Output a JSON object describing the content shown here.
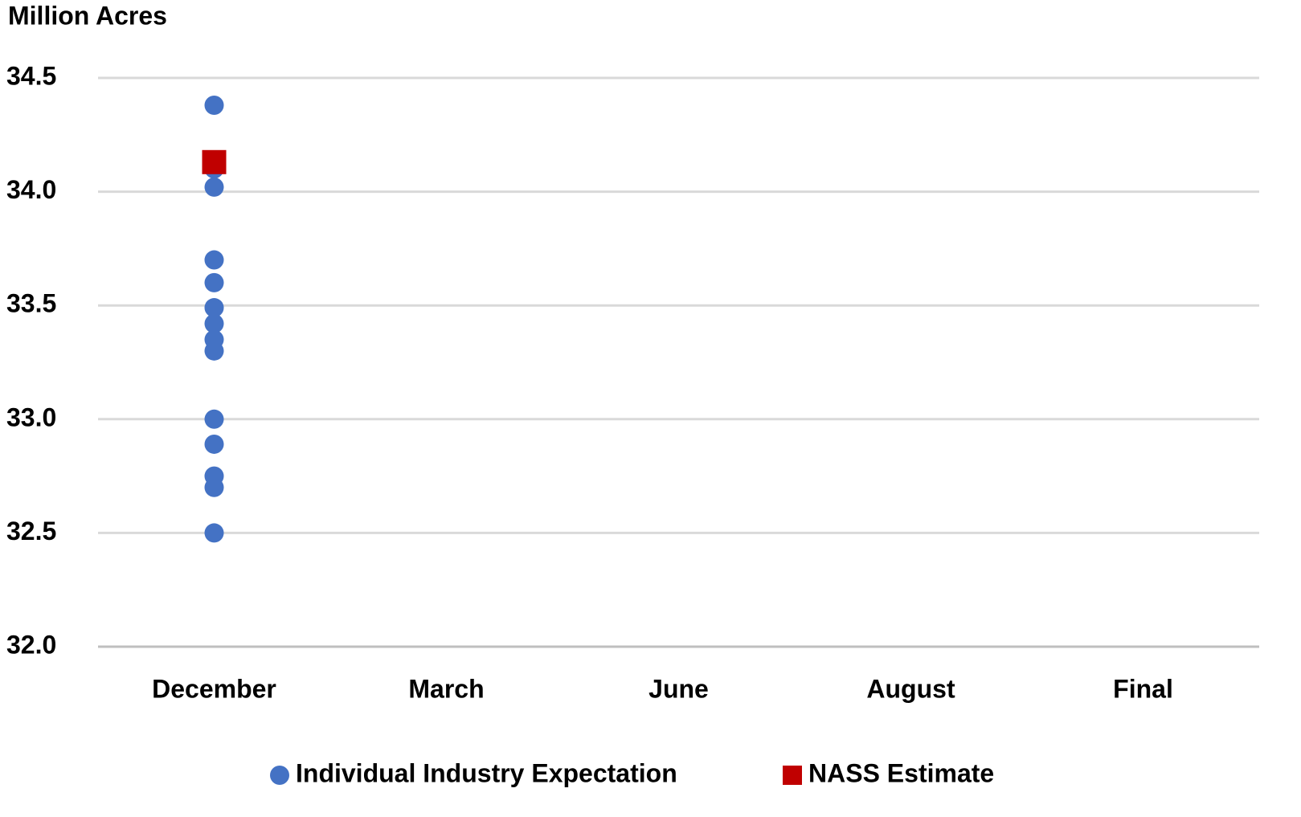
{
  "chart_data": {
    "type": "scatter",
    "y_axis_label": "Million Acres",
    "categories": [
      "December",
      "March",
      "June",
      "August",
      "Final"
    ],
    "series": [
      {
        "name": "Individual Industry Expectation",
        "color": "#4472c4",
        "marker": "circle",
        "x": [
          "December",
          "December",
          "December",
          "December",
          "December",
          "December",
          "December",
          "December",
          "December",
          "December",
          "December",
          "December",
          "December",
          "December"
        ],
        "values": [
          34.38,
          34.1,
          34.02,
          33.7,
          33.6,
          33.49,
          33.42,
          33.35,
          33.3,
          33.0,
          32.89,
          32.75,
          32.7,
          32.5
        ]
      },
      {
        "name": "NASS Estimate",
        "color": "#c00000",
        "marker": "square",
        "x": [
          "December"
        ],
        "values": [
          34.13
        ]
      }
    ],
    "ylim": [
      32.0,
      34.5
    ],
    "yticks": [
      {
        "value": 32.0,
        "label": "32.0"
      },
      32.5,
      {
        "value": 33.0,
        "label": "33.0"
      },
      33.5,
      {
        "value": 34.0,
        "label": "34.0"
      },
      34.5
    ],
    "grid": true,
    "legend": "bottom"
  }
}
